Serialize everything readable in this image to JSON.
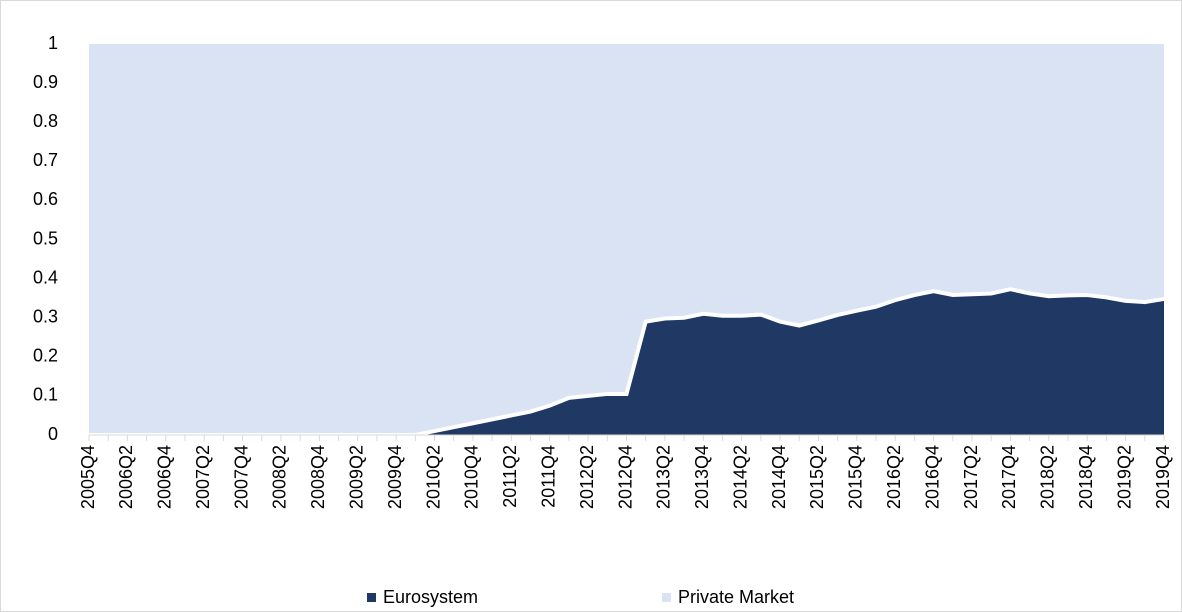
{
  "chart_data": {
    "type": "stacked_area",
    "categories": [
      "2005Q4",
      null,
      "2006Q2",
      null,
      "2006Q4",
      null,
      "2007Q2",
      null,
      "2007Q4",
      null,
      "2008Q2",
      null,
      "2008Q4",
      null,
      "2009Q2",
      null,
      "2009Q4",
      null,
      "2010Q2",
      null,
      "2010Q4",
      null,
      "2011Q2",
      null,
      "2011Q4",
      null,
      "2012Q2",
      null,
      "2012Q4",
      null,
      "2013Q2",
      null,
      "2013Q4",
      null,
      "2014Q2",
      null,
      "2014Q4",
      null,
      "2015Q2",
      null,
      "2015Q4",
      null,
      "2016Q2",
      null,
      "2016Q4",
      null,
      "2017Q2",
      null,
      "2017Q4",
      null,
      "2018Q2",
      null,
      "2018Q4",
      null,
      "2019Q2",
      null,
      "2019Q4"
    ],
    "series": [
      {
        "name": "Eurosystem",
        "color": "#203864",
        "values": [
          0,
          0,
          0,
          0,
          0,
          0,
          0,
          0,
          0,
          0,
          0,
          0,
          0,
          0,
          0,
          0,
          0,
          0,
          0.01,
          0.02,
          0.03,
          0.04,
          0.05,
          0.06,
          0.075,
          0.095,
          0.1,
          0.105,
          0.105,
          0.29,
          0.298,
          0.3,
          0.31,
          0.305,
          0.305,
          0.308,
          0.29,
          0.28,
          0.293,
          0.307,
          0.318,
          0.328,
          0.345,
          0.358,
          0.368,
          0.358,
          0.36,
          0.362,
          0.373,
          0.362,
          0.355,
          0.357,
          0.358,
          0.352,
          0.343,
          0.34,
          0.348
        ]
      },
      {
        "name": "Private Market",
        "color": "#dae3f3",
        "values": [
          1,
          1,
          1,
          1,
          1,
          1,
          1,
          1,
          1,
          1,
          1,
          1,
          1,
          1,
          1,
          1,
          1,
          1,
          0.99,
          0.98,
          0.97,
          0.96,
          0.95,
          0.94,
          0.925,
          0.905,
          0.9,
          0.895,
          0.895,
          0.71,
          0.702,
          0.7,
          0.69,
          0.695,
          0.695,
          0.692,
          0.71,
          0.72,
          0.707,
          0.693,
          0.682,
          0.672,
          0.655,
          0.642,
          0.632,
          0.642,
          0.64,
          0.638,
          0.627,
          0.638,
          0.645,
          0.643,
          0.642,
          0.648,
          0.657,
          0.66,
          0.652
        ]
      }
    ],
    "ylim": [
      0,
      1
    ],
    "yticks": [
      0,
      0.1,
      0.2,
      0.3,
      0.4,
      0.5,
      0.6,
      0.7,
      0.8,
      0.9,
      1
    ],
    "grid": false,
    "legend": "bottom"
  }
}
